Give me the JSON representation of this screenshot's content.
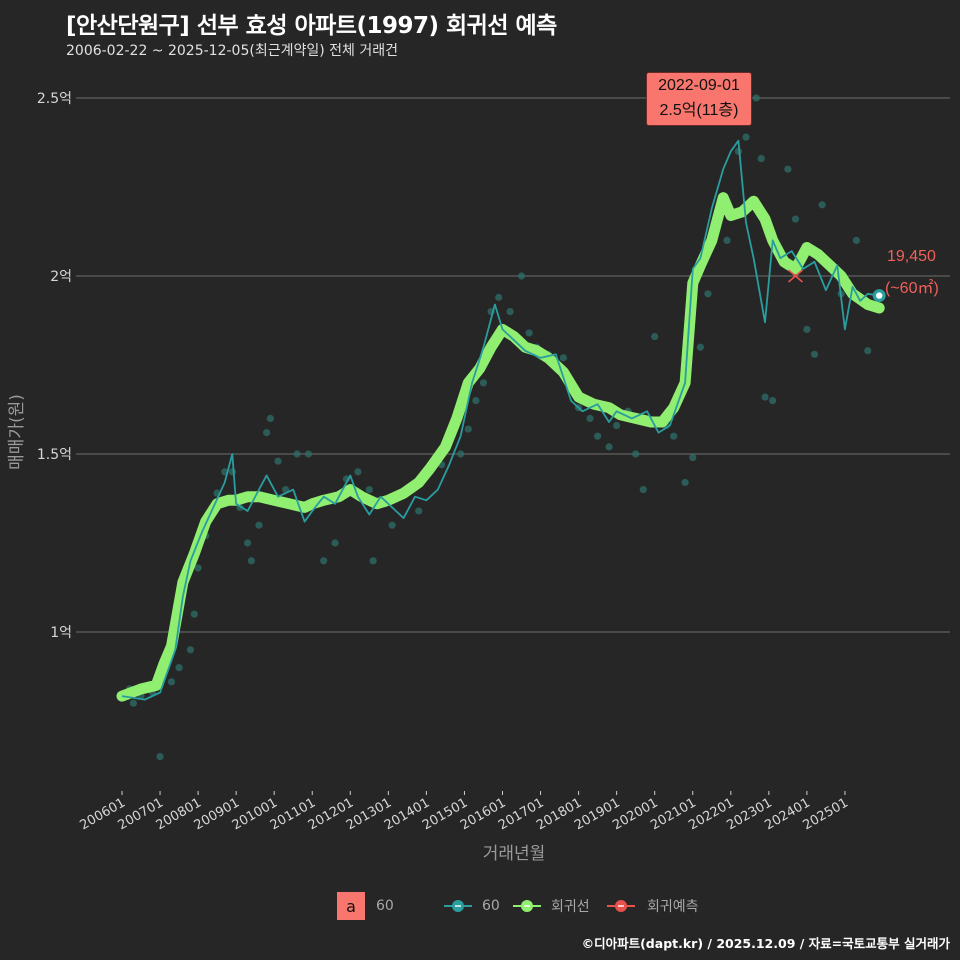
{
  "header": {
    "title": "[안산단원구] 선부 효성 아파트(1997) 회귀선 예측",
    "subtitle": "2006-02-22 ~ 2025-12-05(최근계약일) 전체 거래건"
  },
  "tooltip": {
    "date": "2022-09-01",
    "value": "2.5억(11층)"
  },
  "prediction_label": {
    "value": "19,450",
    "area": "(~60㎡)"
  },
  "legend": {
    "a_box_letter": "a",
    "a_box_label": "60",
    "items": [
      {
        "label": "60",
        "color": "#2a9d9f"
      },
      {
        "label": "회귀선",
        "color": "#90ee70"
      },
      {
        "label": "회귀예측",
        "color": "#e9524c"
      }
    ]
  },
  "caption": "©디아파트(dapt.kr) / 2025.12.09 / 자료=국토교통부 실거래가",
  "colors": {
    "background": "#262626",
    "grid": "#6e6e6e",
    "series_60": "#2a9d9f",
    "regression": "#90ee70",
    "prediction": "#e9524c",
    "tooltip_bg": "#f8766d",
    "scatter": "#2f6f6a"
  },
  "chart_data": {
    "type": "line",
    "title": "[안산단원구] 선부 효성 아파트(1997) 회귀선 예측",
    "subtitle": "2006-02-22 ~ 2025-12-05(최근계약일) 전체 거래건",
    "xlabel": "거래년월",
    "ylabel": "매매가(원)",
    "x_ticks": [
      "200601",
      "200701",
      "200801",
      "200901",
      "201001",
      "201101",
      "201201",
      "201301",
      "201401",
      "201501",
      "201601",
      "201701",
      "201801",
      "201901",
      "202001",
      "202101",
      "202201",
      "202301",
      "202401",
      "202501"
    ],
    "y_ticks": [
      {
        "value": 1.0,
        "label": "1억"
      },
      {
        "value": 1.5,
        "label": "1.5억"
      },
      {
        "value": 2.0,
        "label": "2억"
      },
      {
        "value": 2.5,
        "label": "2.5억"
      }
    ],
    "ylim": [
      0.58,
      2.6
    ],
    "grid": "horizontal",
    "legend_position": "bottom",
    "series": [
      {
        "name": "회귀선",
        "unit": "억",
        "x": [
          2006.0,
          2006.5,
          2006.9,
          2007.1,
          2007.3,
          2007.6,
          2007.9,
          2008.2,
          2008.5,
          2008.8,
          2009.0,
          2009.3,
          2009.6,
          2010.0,
          2010.4,
          2010.8,
          2011.0,
          2011.3,
          2011.7,
          2012.0,
          2012.3,
          2012.7,
          2013.0,
          2013.4,
          2013.8,
          2014.1,
          2014.5,
          2014.8,
          2015.1,
          2015.4,
          2015.7,
          2016.0,
          2016.3,
          2016.6,
          2016.9,
          2017.2,
          2017.6,
          2018.0,
          2018.4,
          2018.8,
          2019.1,
          2019.5,
          2019.9,
          2020.2,
          2020.5,
          2020.8,
          2021.0,
          2021.2,
          2021.5,
          2021.8,
          2022.0,
          2022.3,
          2022.6,
          2022.9,
          2023.1,
          2023.4,
          2023.7,
          2024.0,
          2024.3,
          2024.6,
          2024.9,
          2025.2,
          2025.6,
          2025.9
        ],
        "values": [
          0.82,
          0.84,
          0.85,
          0.91,
          0.96,
          1.14,
          1.22,
          1.31,
          1.36,
          1.37,
          1.37,
          1.38,
          1.38,
          1.37,
          1.36,
          1.35,
          1.36,
          1.37,
          1.38,
          1.4,
          1.38,
          1.36,
          1.37,
          1.39,
          1.42,
          1.46,
          1.52,
          1.6,
          1.7,
          1.74,
          1.8,
          1.85,
          1.83,
          1.8,
          1.79,
          1.77,
          1.73,
          1.66,
          1.64,
          1.63,
          1.61,
          1.6,
          1.59,
          1.59,
          1.63,
          1.7,
          1.98,
          2.03,
          2.1,
          2.22,
          2.17,
          2.18,
          2.21,
          2.16,
          2.1,
          2.04,
          2.02,
          2.08,
          2.06,
          2.03,
          2.0,
          1.95,
          1.92,
          1.91
        ]
      },
      {
        "name": "60",
        "unit": "억",
        "x": [
          2006.0,
          2006.6,
          2007.0,
          2007.4,
          2007.6,
          2007.8,
          2008.1,
          2008.4,
          2008.7,
          2008.9,
          2009.0,
          2009.3,
          2009.6,
          2009.8,
          2010.1,
          2010.5,
          2010.8,
          2011.0,
          2011.3,
          2011.6,
          2012.0,
          2012.2,
          2012.5,
          2012.8,
          2013.0,
          2013.4,
          2013.7,
          2014.0,
          2014.3,
          2014.6,
          2014.9,
          2015.2,
          2015.5,
          2015.8,
          2016.0,
          2016.2,
          2016.6,
          2017.0,
          2017.4,
          2017.8,
          2018.1,
          2018.5,
          2018.8,
          2019.0,
          2019.4,
          2019.8,
          2020.1,
          2020.4,
          2020.8,
          2021.0,
          2021.2,
          2021.5,
          2021.8,
          2022.0,
          2022.2,
          2022.4,
          2022.6,
          2022.9,
          2023.1,
          2023.3,
          2023.6,
          2023.9,
          2024.2,
          2024.5,
          2024.8,
          2025.0,
          2025.2,
          2025.4,
          2025.6,
          2025.9
        ],
        "values": [
          0.82,
          0.81,
          0.83,
          0.95,
          1.1,
          1.2,
          1.28,
          1.35,
          1.42,
          1.5,
          1.36,
          1.34,
          1.4,
          1.44,
          1.38,
          1.4,
          1.31,
          1.34,
          1.38,
          1.36,
          1.44,
          1.38,
          1.33,
          1.38,
          1.36,
          1.32,
          1.38,
          1.37,
          1.4,
          1.47,
          1.55,
          1.7,
          1.8,
          1.92,
          1.85,
          1.83,
          1.79,
          1.77,
          1.78,
          1.65,
          1.62,
          1.64,
          1.59,
          1.62,
          1.6,
          1.62,
          1.56,
          1.58,
          1.7,
          2.02,
          2.05,
          2.19,
          2.3,
          2.35,
          2.38,
          2.15,
          2.05,
          1.87,
          2.1,
          2.05,
          2.07,
          2.02,
          2.04,
          1.96,
          2.03,
          1.85,
          1.97,
          1.93,
          1.95,
          1.945
        ]
      },
      {
        "name": "회귀예측",
        "unit": "억",
        "points": [
          {
            "x": 2023.7,
            "y": 2.0,
            "marker": "x"
          }
        ]
      }
    ],
    "scatter": {
      "name": "60 거래건",
      "unit": "억",
      "points": [
        [
          2006.2,
          0.84
        ],
        [
          2006.3,
          0.8
        ],
        [
          2006.5,
          0.82
        ],
        [
          2006.8,
          0.83
        ],
        [
          2007.0,
          0.65
        ],
        [
          2007.3,
          0.86
        ],
        [
          2007.5,
          0.9
        ],
        [
          2007.8,
          0.95
        ],
        [
          2007.9,
          1.05
        ],
        [
          2008.0,
          1.18
        ],
        [
          2008.2,
          1.27
        ],
        [
          2008.3,
          1.33
        ],
        [
          2008.5,
          1.39
        ],
        [
          2008.7,
          1.45
        ],
        [
          2008.9,
          1.45
        ],
        [
          2009.1,
          1.35
        ],
        [
          2009.3,
          1.25
        ],
        [
          2009.4,
          1.2
        ],
        [
          2009.6,
          1.3
        ],
        [
          2009.8,
          1.56
        ],
        [
          2009.9,
          1.6
        ],
        [
          2010.1,
          1.48
        ],
        [
          2010.3,
          1.4
        ],
        [
          2010.6,
          1.5
        ],
        [
          2010.9,
          1.5
        ],
        [
          2011.1,
          1.36
        ],
        [
          2011.3,
          1.2
        ],
        [
          2011.6,
          1.25
        ],
        [
          2011.9,
          1.43
        ],
        [
          2012.2,
          1.45
        ],
        [
          2012.5,
          1.4
        ],
        [
          2012.6,
          1.2
        ],
        [
          2012.9,
          1.36
        ],
        [
          2013.1,
          1.3
        ],
        [
          2013.5,
          1.4
        ],
        [
          2013.8,
          1.34
        ],
        [
          2014.1,
          1.45
        ],
        [
          2014.4,
          1.47
        ],
        [
          2014.6,
          1.55
        ],
        [
          2014.9,
          1.5
        ],
        [
          2015.1,
          1.57
        ],
        [
          2015.3,
          1.65
        ],
        [
          2015.5,
          1.7
        ],
        [
          2015.7,
          1.9
        ],
        [
          2015.9,
          1.94
        ],
        [
          2016.2,
          1.9
        ],
        [
          2016.5,
          2.0
        ],
        [
          2016.7,
          1.84
        ],
        [
          2016.9,
          1.8
        ],
        [
          2017.2,
          1.78
        ],
        [
          2017.4,
          1.76
        ],
        [
          2017.6,
          1.77
        ],
        [
          2017.9,
          1.68
        ],
        [
          2018.0,
          1.63
        ],
        [
          2018.3,
          1.6
        ],
        [
          2018.5,
          1.55
        ],
        [
          2018.8,
          1.52
        ],
        [
          2019.0,
          1.58
        ],
        [
          2019.3,
          1.62
        ],
        [
          2019.5,
          1.5
        ],
        [
          2019.7,
          1.4
        ],
        [
          2020.0,
          1.83
        ],
        [
          2020.3,
          1.58
        ],
        [
          2020.5,
          1.55
        ],
        [
          2020.8,
          1.42
        ],
        [
          2021.0,
          1.49
        ],
        [
          2021.2,
          1.8
        ],
        [
          2021.4,
          1.95
        ],
        [
          2021.7,
          2.17
        ],
        [
          2021.9,
          2.1
        ],
        [
          2022.2,
          2.35
        ],
        [
          2022.4,
          2.39
        ],
        [
          2022.67,
          2.5
        ],
        [
          2022.8,
          2.33
        ],
        [
          2022.9,
          1.66
        ],
        [
          2023.1,
          1.65
        ],
        [
          2023.5,
          2.3
        ],
        [
          2023.7,
          2.16
        ],
        [
          2023.9,
          2.05
        ],
        [
          2024.0,
          1.85
        ],
        [
          2024.2,
          1.78
        ],
        [
          2024.4,
          2.2
        ],
        [
          2024.7,
          2.02
        ],
        [
          2024.9,
          1.95
        ],
        [
          2025.3,
          2.1
        ],
        [
          2025.6,
          1.79
        ]
      ]
    },
    "annotations": [
      {
        "type": "label",
        "x": 2022.67,
        "y": 2.5,
        "text": "2022-09-01\n2.5억(11층)"
      },
      {
        "type": "text",
        "x": 2025.9,
        "y": 1.945,
        "text": "19,450 (~60㎡)"
      }
    ]
  }
}
